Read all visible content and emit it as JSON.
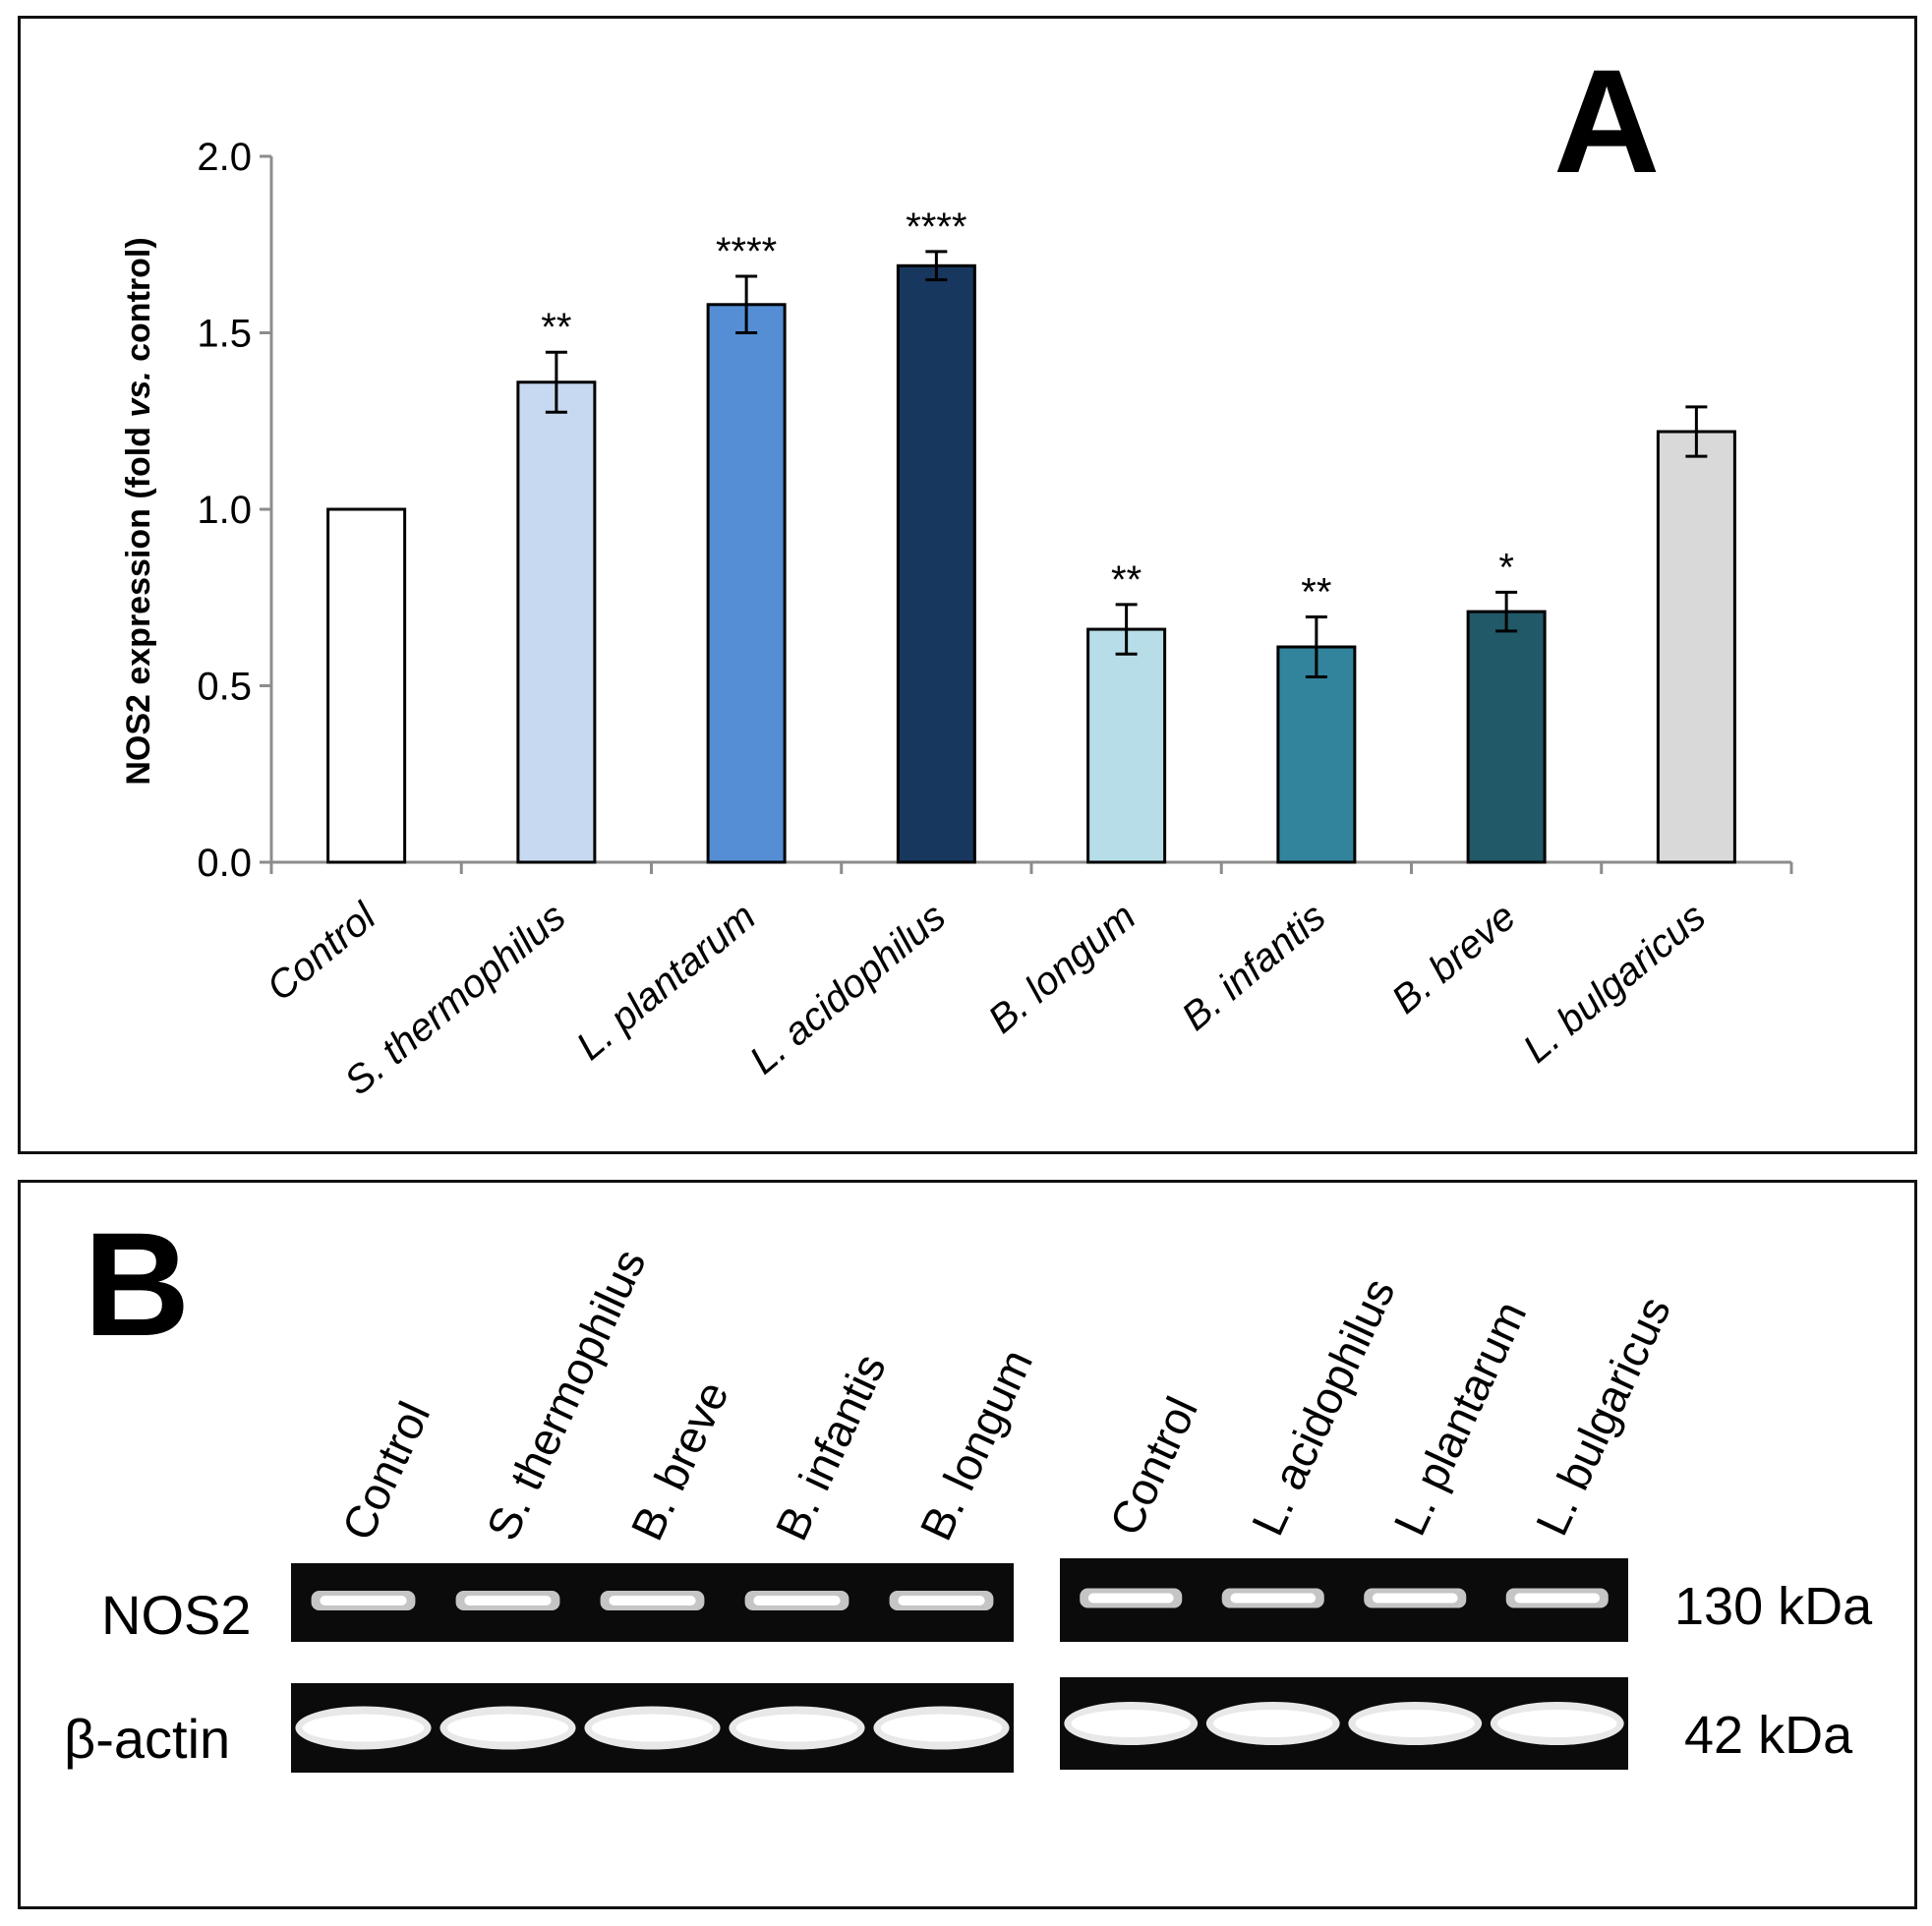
{
  "panel_a": {
    "letter": "A",
    "chart_data": {
      "type": "bar",
      "categories": [
        "Control",
        "S. thermophilus",
        "L. plantarum",
        "L. acidophilus",
        "B. longum",
        "B. infantis",
        "B. breve",
        "L. bulgaricus"
      ],
      "values": [
        1.0,
        1.36,
        1.58,
        1.69,
        0.66,
        0.61,
        0.71,
        1.22
      ],
      "errors": [
        0,
        0.085,
        0.08,
        0.04,
        0.07,
        0.085,
        0.055,
        0.07
      ],
      "significance": [
        "",
        "**",
        "****",
        "****",
        "**",
        "**",
        "*",
        ""
      ],
      "bar_colors": [
        "#ffffff",
        "#c6d9f1",
        "#558ed5",
        "#17375e",
        "#b7dee8",
        "#31849b",
        "#215968",
        "#d9d9d9"
      ],
      "ylabel_parts": [
        "NOS2 expression (fold ",
        "vs.",
        " control)"
      ],
      "yticks": [
        "0.0",
        "0.5",
        "1.0",
        "1.5",
        "2.0"
      ],
      "ylim": [
        0,
        2.0
      ],
      "grid": false
    }
  },
  "panel_b": {
    "letter": "B",
    "left_blot": {
      "lanes": [
        "Control",
        "S. thermophilus",
        "B. breve",
        "B. infantis",
        "B. longum"
      ]
    },
    "right_blot": {
      "lanes": [
        "Control",
        "L. acidophilus",
        "L. plantarum",
        "L. bulgaricus"
      ]
    },
    "rows": [
      {
        "label": "NOS2",
        "size": "130 kDa"
      },
      {
        "label": "β-actin",
        "size": "42 kDa"
      }
    ]
  }
}
